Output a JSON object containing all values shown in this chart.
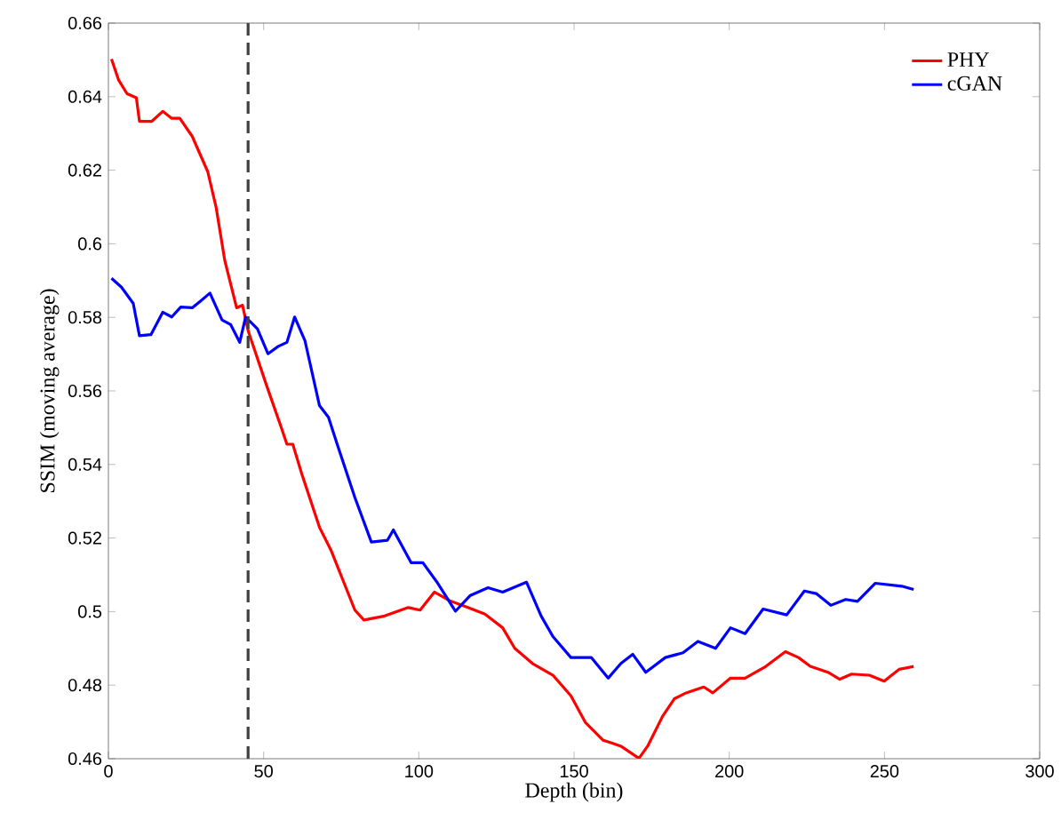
{
  "chart_data": {
    "type": "line",
    "xlabel": "Depth (bin)",
    "ylabel": "SSIM (moving average)",
    "xlim": [
      0,
      300
    ],
    "xticks": [
      0,
      50,
      100,
      150,
      200,
      250,
      300
    ],
    "ylim": [
      0.46,
      0.66
    ],
    "yticks": [
      0.46,
      0.48,
      0.5,
      0.52,
      0.54,
      0.56,
      0.58,
      0.6,
      0.62,
      0.64,
      0.66
    ],
    "legend": "top right",
    "grid": false,
    "marker": "none",
    "line_style": "solid",
    "ref_lines": [
      {
        "axis": "x",
        "value": 45,
        "color": "#404040",
        "line_style": "dashed"
      }
    ],
    "series": [
      {
        "name": "PHY",
        "color": "#ff0000",
        "x": [
          1,
          3.3,
          6,
          9,
          10,
          14,
          17.5,
          20.4,
          23,
          27,
          32,
          34.7,
          37.5,
          41.3,
          43.2,
          45.1,
          50.9,
          55.6,
          57.5,
          59.4,
          62.3,
          68,
          71.8,
          79.4,
          82.3,
          89,
          96.6,
          100.4,
          105,
          109.8,
          115.6,
          121.3,
          127,
          130.9,
          136.6,
          143.2,
          149,
          153.7,
          159.4,
          162.3,
          165.1,
          170.9,
          173.7,
          178.5,
          182.3,
          186.1,
          191.8,
          194.7,
          200.4,
          205.1,
          211.8,
          218.1,
          222.3,
          226.1,
          231.8,
          235.6,
          239.4,
          245.1,
          249.9,
          254.7,
          259.4
        ],
        "values": [
          0.6502,
          0.6445,
          0.6408,
          0.6397,
          0.6333,
          0.6333,
          0.636,
          0.6341,
          0.6341,
          0.6292,
          0.6196,
          0.6099,
          0.5954,
          0.5826,
          0.5833,
          0.5761,
          0.5616,
          0.5503,
          0.5455,
          0.5455,
          0.5374,
          0.5229,
          0.5165,
          0.5004,
          0.4977,
          0.4988,
          0.5011,
          0.5004,
          0.5053,
          0.503,
          0.5012,
          0.4993,
          0.4956,
          0.49,
          0.4859,
          0.4827,
          0.4771,
          0.4698,
          0.465,
          0.4642,
          0.4634,
          0.4601,
          0.4634,
          0.4715,
          0.4763,
          0.4779,
          0.4795,
          0.4779,
          0.4819,
          0.4819,
          0.4851,
          0.4891,
          0.4875,
          0.4851,
          0.4835,
          0.4816,
          0.483,
          0.4827,
          0.4811,
          0.4843,
          0.4851
        ]
      },
      {
        "name": "cGAN",
        "color": "#0000ff",
        "x": [
          1,
          4.2,
          8,
          10,
          13.7,
          17.5,
          20.4,
          23.3,
          27,
          29.9,
          32.7,
          36.6,
          39.4,
          42.3,
          44.2,
          48,
          51.4,
          54.7,
          57.5,
          60,
          63.3,
          68,
          70.9,
          73.7,
          79.4,
          84.7,
          89.9,
          91.8,
          97.5,
          101.3,
          106.1,
          111.8,
          116.6,
          122.3,
          127,
          134.7,
          139.4,
          143.2,
          149,
          155.6,
          161,
          165.1,
          168.9,
          173.1,
          179.4,
          185.1,
          189.9,
          195.6,
          200.4,
          205.1,
          210.9,
          218.5,
          224.2,
          228,
          232.7,
          237.5,
          241.3,
          247,
          255.6,
          259.4
        ],
        "values": [
          0.5906,
          0.5882,
          0.5838,
          0.575,
          0.5753,
          0.5814,
          0.5801,
          0.5828,
          0.5826,
          0.5846,
          0.5866,
          0.5793,
          0.578,
          0.5732,
          0.5801,
          0.5769,
          0.5701,
          0.5721,
          0.5732,
          0.5801,
          0.5737,
          0.556,
          0.5528,
          0.5455,
          0.531,
          0.5189,
          0.5194,
          0.5222,
          0.5133,
          0.5133,
          0.5077,
          0.5001,
          0.5044,
          0.5065,
          0.5053,
          0.508,
          0.4988,
          0.4932,
          0.4875,
          0.4875,
          0.4819,
          0.4859,
          0.4884,
          0.4835,
          0.4875,
          0.4888,
          0.4919,
          0.49,
          0.4956,
          0.494,
          0.5007,
          0.4991,
          0.5056,
          0.5049,
          0.5017,
          0.5033,
          0.5028,
          0.5077,
          0.5069,
          0.506
        ]
      }
    ]
  }
}
